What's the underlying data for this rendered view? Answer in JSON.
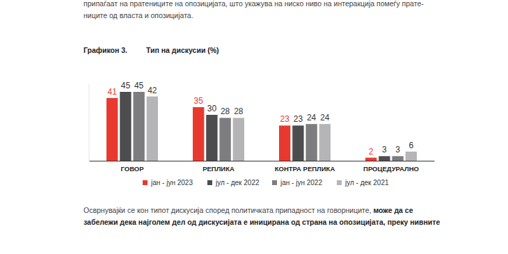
{
  "chart_data": {
    "type": "bar",
    "title": "Тип на дискусии (%)",
    "categories": [
      "ГОВОР",
      "РЕПЛИКА",
      "КОНТРА РЕПЛИКА",
      "ПРОЦЕДУРАЛНО"
    ],
    "series": [
      {
        "name": "јан - јун 2023",
        "color": "#e8392f",
        "values": [
          41,
          35,
          23,
          2
        ]
      },
      {
        "name": "јул - дек 2022",
        "color": "#4d4d4f",
        "values": [
          45,
          30,
          23,
          3
        ]
      },
      {
        "name": "јан - јун 2022",
        "color": "#7d7d80",
        "values": [
          45,
          28,
          24,
          3
        ]
      },
      {
        "name": "јул - дек 2021",
        "color": "#b5b5b8",
        "values": [
          42,
          28,
          24,
          6
        ]
      }
    ],
    "ylim": [
      0,
      50
    ],
    "grid": false,
    "legend": "bottom",
    "data_labels": true,
    "tick_labels": "x"
  },
  "page": {
    "text_top": [
      "припаѓаат на пратениците на опозицијата, што укажува на ниско ниво на интеракција помеѓу прате-",
      "ниците од власта и опозицијата."
    ],
    "figure_label": "Графикон 3.",
    "text_bottom": [
      {
        "regular": "Осврнувајќи се кон типот дискусија според политичката припадност на говорниците, ",
        "bold": "може да се"
      },
      {
        "regular": "",
        "bold": "забележи дека најголем дел од дискусијата е иницирана од страна на опозицијата, преку нивните"
      }
    ]
  }
}
